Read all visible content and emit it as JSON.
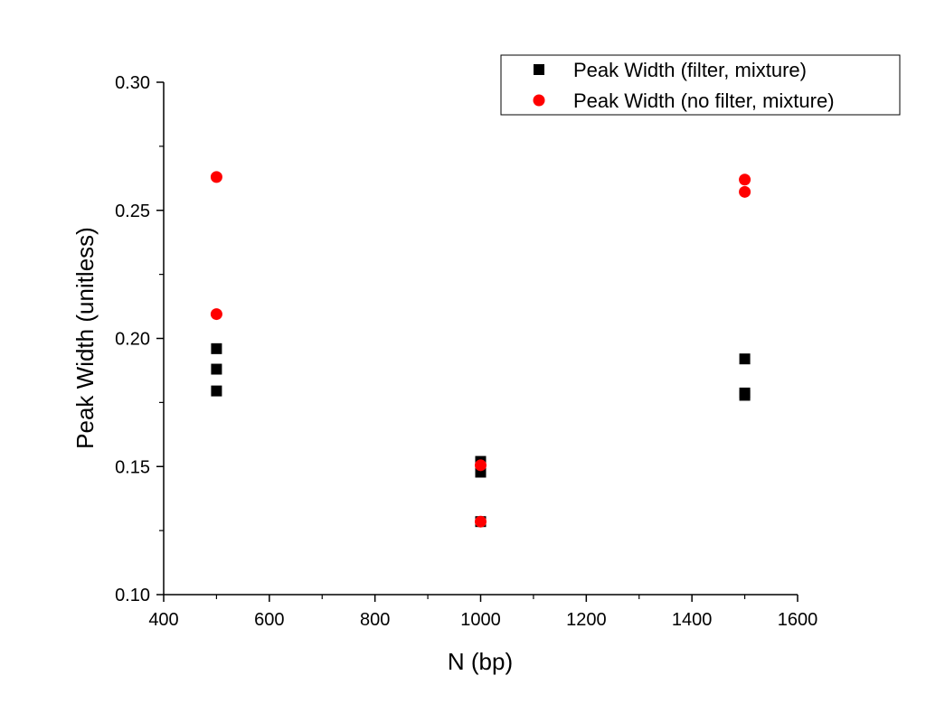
{
  "chart_data": {
    "type": "scatter",
    "title": "",
    "xlabel": "N (bp)",
    "ylabel": "Peak Width (unitless)",
    "xlim": [
      400,
      1600
    ],
    "ylim": [
      0.1,
      0.3
    ],
    "x_ticks": [
      400,
      600,
      800,
      1000,
      1200,
      1400,
      1600
    ],
    "y_ticks": [
      0.1,
      0.15,
      0.2,
      0.25,
      0.3
    ],
    "x_tick_labels": [
      "400",
      "600",
      "800",
      "1000",
      "1200",
      "1400",
      "1600"
    ],
    "y_tick_labels": [
      "0.10",
      "0.15",
      "0.20",
      "0.25",
      "0.30"
    ],
    "grid": false,
    "legend_position": "top-right",
    "series": [
      {
        "name": "Peak Width (filter, mixture)",
        "marker": "square",
        "color": "#000000",
        "points": [
          {
            "x": 500,
            "y": 0.196
          },
          {
            "x": 500,
            "y": 0.188
          },
          {
            "x": 500,
            "y": 0.1795
          },
          {
            "x": 1000,
            "y": 0.152
          },
          {
            "x": 1000,
            "y": 0.1478
          },
          {
            "x": 1000,
            "y": 0.1285
          },
          {
            "x": 1500,
            "y": 0.192
          },
          {
            "x": 1500,
            "y": 0.1787
          },
          {
            "x": 1500,
            "y": 0.1778
          }
        ]
      },
      {
        "name": "Peak Width (no filter, mixture)",
        "marker": "circle",
        "color": "#ff0000",
        "points": [
          {
            "x": 500,
            "y": 0.263
          },
          {
            "x": 500,
            "y": 0.2095
          },
          {
            "x": 1000,
            "y": 0.1505
          },
          {
            "x": 1000,
            "y": 0.1285
          },
          {
            "x": 1500,
            "y": 0.262
          },
          {
            "x": 1500,
            "y": 0.2572
          }
        ]
      }
    ]
  }
}
